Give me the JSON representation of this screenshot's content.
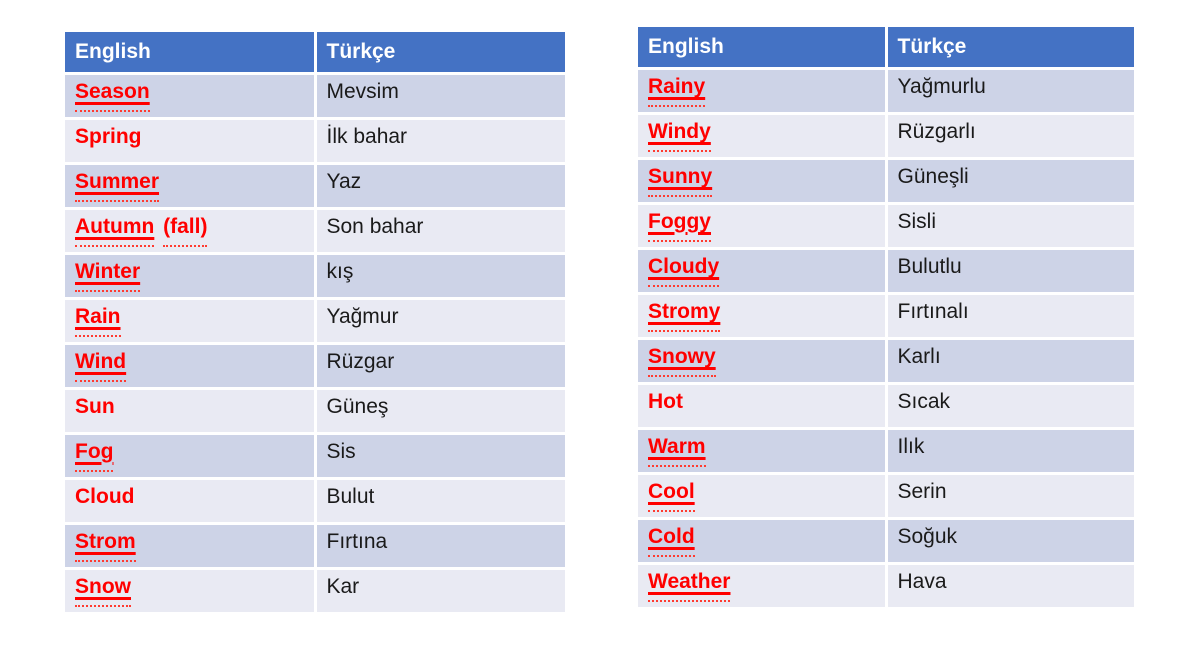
{
  "slide": {
    "background": "#ffffff"
  },
  "colors": {
    "slide_bg": "#ffffff",
    "header_bg": "#4472c4",
    "header_text": "#ffffff",
    "band_dark": "#cdd3e7",
    "band_light": "#e9eaf3",
    "term_red": "#ff0000",
    "squiggle_red": "#ff3b30",
    "translation_text": "#1a1a1a"
  },
  "tables": [
    {
      "id": "weather-nouns",
      "headers": {
        "english": "English",
        "turkish": "Türkçe"
      },
      "rows": [
        {
          "turkish": "Mevsim",
          "en_parts": [
            {
              "text": "Season",
              "solid": true,
              "squiggle": true
            }
          ]
        },
        {
          "turkish": "İlk bahar",
          "en_parts": [
            {
              "text": "Spring",
              "solid": false,
              "squiggle": false
            }
          ]
        },
        {
          "turkish": "Yaz",
          "en_parts": [
            {
              "text": "Summer",
              "solid": true,
              "squiggle": true
            }
          ]
        },
        {
          "turkish": "Son bahar",
          "en_parts": [
            {
              "text": "Autumn",
              "solid": true,
              "squiggle": true
            },
            {
              "text": "(fall)",
              "solid": false,
              "squiggle": true
            }
          ]
        },
        {
          "turkish": "kış",
          "en_parts": [
            {
              "text": "Winter",
              "solid": true,
              "squiggle": true
            }
          ]
        },
        {
          "turkish": "Yağmur",
          "en_parts": [
            {
              "text": "Rain",
              "solid": true,
              "squiggle": true
            }
          ]
        },
        {
          "turkish": "Rüzgar",
          "en_parts": [
            {
              "text": "Wind",
              "solid": true,
              "squiggle": true
            }
          ]
        },
        {
          "turkish": "Güneş",
          "en_parts": [
            {
              "text": "Sun",
              "solid": false,
              "squiggle": false
            }
          ]
        },
        {
          "turkish": "Sis",
          "en_parts": [
            {
              "text": "Fog",
              "solid": true,
              "squiggle": true
            }
          ]
        },
        {
          "turkish": "Bulut",
          "en_parts": [
            {
              "text": "Cloud",
              "solid": false,
              "squiggle": false
            }
          ]
        },
        {
          "turkish": "Fırtına",
          "en_parts": [
            {
              "text": "Strom",
              "solid": true,
              "squiggle": true
            }
          ]
        },
        {
          "turkish": "Kar",
          "en_parts": [
            {
              "text": "Snow",
              "solid": true,
              "squiggle": true
            }
          ]
        }
      ]
    },
    {
      "id": "weather-adjectives",
      "headers": {
        "english": "English",
        "turkish": "Türkçe"
      },
      "rows": [
        {
          "turkish": "Yağmurlu",
          "en_parts": [
            {
              "text": "Rainy",
              "solid": true,
              "squiggle": true
            }
          ]
        },
        {
          "turkish": "Rüzgarlı",
          "en_parts": [
            {
              "text": "Windy",
              "solid": true,
              "squiggle": true
            }
          ]
        },
        {
          "turkish": "Güneşli",
          "en_parts": [
            {
              "text": "Sunny",
              "solid": true,
              "squiggle": true
            }
          ]
        },
        {
          "turkish": "Sisli",
          "en_parts": [
            {
              "text": "Foggy",
              "solid": true,
              "squiggle": true
            }
          ]
        },
        {
          "turkish": "Bulutlu",
          "en_parts": [
            {
              "text": "Cloudy",
              "solid": true,
              "squiggle": true
            }
          ]
        },
        {
          "turkish": "Fırtınalı",
          "en_parts": [
            {
              "text": "Stromy",
              "solid": true,
              "squiggle": true
            }
          ]
        },
        {
          "turkish": "Karlı",
          "en_parts": [
            {
              "text": "Snowy",
              "solid": true,
              "squiggle": true
            }
          ]
        },
        {
          "turkish": "Sıcak",
          "en_parts": [
            {
              "text": "Hot",
              "solid": false,
              "squiggle": false
            }
          ]
        },
        {
          "turkish": "Ilık",
          "en_parts": [
            {
              "text": "Warm",
              "solid": true,
              "squiggle": true
            }
          ]
        },
        {
          "turkish": "Serin",
          "en_parts": [
            {
              "text": "Cool",
              "solid": true,
              "squiggle": true
            }
          ]
        },
        {
          "turkish": "Soğuk",
          "en_parts": [
            {
              "text": "Cold",
              "solid": true,
              "squiggle": true
            }
          ]
        },
        {
          "turkish": "Hava",
          "en_parts": [
            {
              "text": "Weather",
              "solid": true,
              "squiggle": true
            }
          ]
        }
      ]
    }
  ]
}
